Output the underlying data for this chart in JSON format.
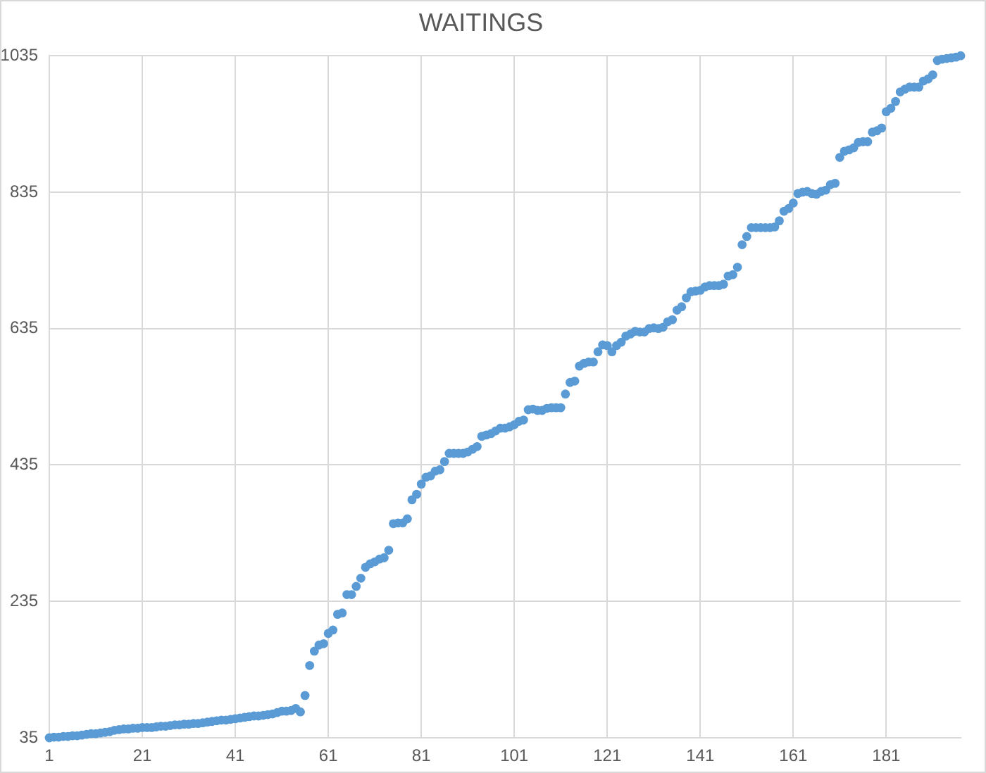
{
  "chart_data": {
    "type": "scatter",
    "title": "WAITINGS",
    "color": "#5b9bd5",
    "marker": "circle",
    "grid": true,
    "xlim": [
      1,
      197
    ],
    "xticks": [
      1,
      21,
      41,
      61,
      81,
      101,
      121,
      141,
      161,
      181
    ],
    "ylim": [
      35,
      1035
    ],
    "yticks": [
      35,
      235,
      435,
      635,
      835,
      1035
    ],
    "x": [
      1,
      2,
      3,
      4,
      5,
      6,
      7,
      8,
      9,
      10,
      11,
      12,
      13,
      14,
      15,
      16,
      17,
      18,
      19,
      20,
      21,
      22,
      23,
      24,
      25,
      26,
      27,
      28,
      29,
      30,
      31,
      32,
      33,
      34,
      35,
      36,
      37,
      38,
      39,
      40,
      41,
      42,
      43,
      44,
      45,
      46,
      47,
      48,
      49,
      50,
      51,
      52,
      53,
      54,
      55,
      56,
      57,
      58,
      59,
      60,
      61,
      62,
      63,
      64,
      65,
      66,
      67,
      68,
      69,
      70,
      71,
      72,
      73,
      74,
      75,
      76,
      77,
      78,
      79,
      80,
      81,
      82,
      83,
      84,
      85,
      86,
      87,
      88,
      89,
      90,
      91,
      92,
      93,
      94,
      95,
      96,
      97,
      98,
      99,
      100,
      101,
      102,
      103,
      104,
      105,
      106,
      107,
      108,
      109,
      110,
      111,
      112,
      113,
      114,
      115,
      116,
      117,
      118,
      119,
      120,
      121,
      122,
      123,
      124,
      125,
      126,
      127,
      128,
      129,
      130,
      131,
      132,
      133,
      134,
      135,
      136,
      137,
      138,
      139,
      140,
      141,
      142,
      143,
      144,
      145,
      146,
      147,
      148,
      149,
      150,
      151,
      152,
      153,
      154,
      155,
      156,
      157,
      158,
      159,
      160,
      161,
      162,
      163,
      164,
      165,
      166,
      167,
      168,
      169,
      170,
      171,
      172,
      173,
      174,
      175,
      176,
      177,
      178,
      179,
      180,
      181,
      182,
      183,
      184,
      185,
      186,
      187,
      188,
      189,
      190,
      191,
      192,
      193,
      194,
      195,
      196,
      197
    ],
    "values": [
      35,
      36,
      36,
      37,
      37,
      38,
      38,
      39,
      40,
      41,
      41,
      42,
      43,
      44,
      46,
      47,
      48,
      48,
      49,
      49,
      50,
      50,
      50,
      51,
      52,
      52,
      53,
      54,
      54,
      55,
      55,
      56,
      56,
      57,
      58,
      59,
      60,
      61,
      61,
      62,
      63,
      64,
      65,
      66,
      67,
      67,
      68,
      69,
      70,
      72,
      74,
      74,
      75,
      78,
      73,
      97,
      141,
      162,
      171,
      173,
      188,
      193,
      216,
      218,
      245,
      245,
      257,
      269,
      285,
      290,
      293,
      297,
      299,
      310,
      349,
      350,
      350,
      356,
      384,
      392,
      407,
      417,
      419,
      426,
      428,
      440,
      452,
      452,
      452,
      452,
      454,
      458,
      462,
      477,
      479,
      481,
      485,
      489,
      489,
      491,
      494,
      499,
      501,
      516,
      517,
      515,
      515,
      518,
      519,
      519,
      519,
      539,
      556,
      558,
      580,
      584,
      586,
      586,
      601,
      611,
      610,
      601,
      610,
      615,
      624,
      627,
      631,
      630,
      630,
      635,
      636,
      635,
      637,
      645,
      648,
      662,
      667,
      680,
      689,
      690,
      691,
      696,
      698,
      698,
      698,
      700,
      712,
      714,
      725,
      758,
      770,
      783,
      783,
      783,
      783,
      783,
      784,
      793,
      807,
      811,
      819,
      833,
      835,
      836,
      833,
      832,
      836,
      838,
      846,
      848,
      886,
      895,
      897,
      900,
      908,
      909,
      909,
      923,
      925,
      929,
      953,
      958,
      968,
      982,
      986,
      989,
      989,
      989,
      998,
      1001,
      1007,
      1028,
      1030,
      1031,
      1032,
      1033,
      1035
    ]
  }
}
